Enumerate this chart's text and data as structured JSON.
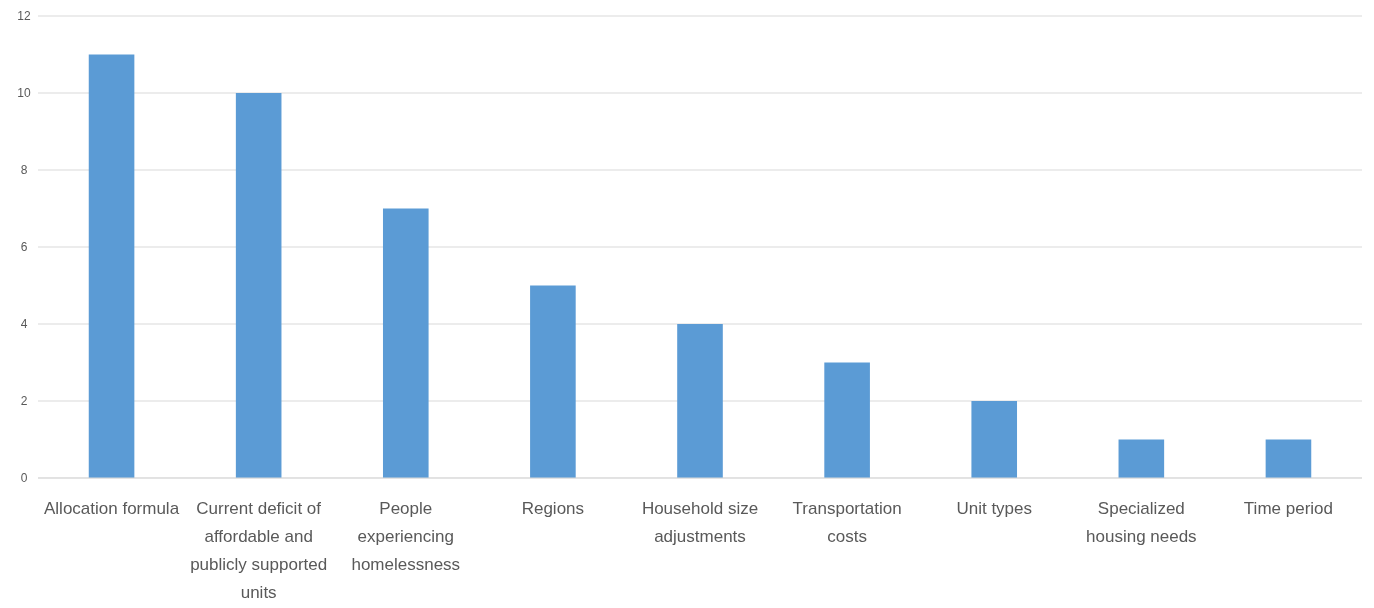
{
  "chart_data": {
    "type": "bar",
    "categories": [
      "Allocation formula",
      "Current deficit of affordable and publicly supported units",
      "People experiencing homelessness",
      "Regions",
      "Household size adjustments",
      "Transportation costs",
      "Unit types",
      "Specialized housing needs",
      "Time period"
    ],
    "values": [
      11,
      10,
      7,
      5,
      4,
      3,
      2,
      1,
      1
    ],
    "color": "#5b9bd5",
    "ylim": [
      0,
      12
    ],
    "yticks": [
      0,
      2,
      4,
      6,
      8,
      10,
      12
    ],
    "grid": "y"
  }
}
